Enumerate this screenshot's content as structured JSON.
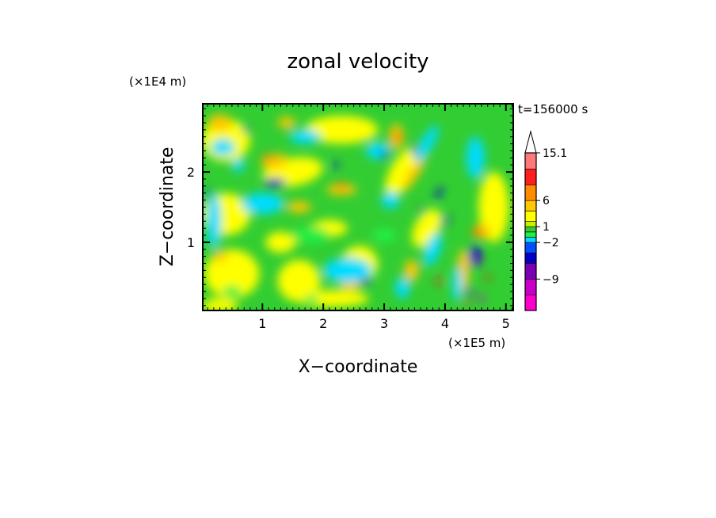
{
  "chart_data": {
    "type": "heatmap",
    "title": "zonal velocity",
    "time_label": "t=156000 s",
    "xlabel": "X−coordinate",
    "ylabel": "Z−coordinate",
    "x_scale_label": "(×1E5 m)",
    "y_scale_label": "(×1E4 m)",
    "xlim": [
      0.02,
      5.12
    ],
    "ylim": [
      0.03,
      2.97
    ],
    "x_ticks": [
      1,
      2,
      3,
      4,
      5
    ],
    "y_ticks": [
      1,
      2
    ],
    "colorbar": {
      "levels": [
        -15,
        -12,
        -9,
        -6,
        -4,
        -2,
        -1,
        0,
        1,
        2,
        4,
        6,
        9,
        12,
        15.1
      ],
      "colors": [
        "#ff00cc",
        "#c800c8",
        "#7a00b4",
        "#0000c8",
        "#0050ff",
        "#00dcff",
        "#22ee44",
        "#32cd32",
        "#c8f000",
        "#ffff00",
        "#ffc800",
        "#ff8c00",
        "#ff1e1e",
        "#ff7878",
        "#ffc8c8"
      ],
      "tick_labels": [
        "15.1",
        "6",
        "1",
        "−2",
        "−9"
      ],
      "tick_values": [
        15.1,
        6,
        1,
        -2,
        -9
      ],
      "extend": "max"
    }
  }
}
